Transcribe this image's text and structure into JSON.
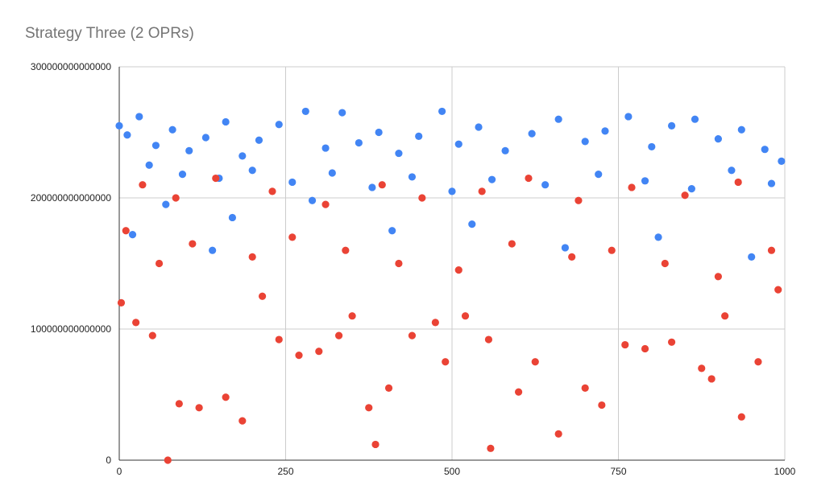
{
  "chart_data": {
    "type": "scatter",
    "title": "Strategy Three (2 OPRs)",
    "xlabel": "",
    "ylabel": "",
    "xlim": [
      0,
      1000
    ],
    "ylim": [
      0,
      300000000000000
    ],
    "x_ticks": [
      0,
      250,
      500,
      750,
      1000
    ],
    "x_tick_labels": [
      "0",
      "250",
      "500",
      "750",
      "1000"
    ],
    "y_ticks": [
      0,
      100000000000000,
      200000000000000,
      300000000000000
    ],
    "y_tick_labels": [
      "0",
      "100000000000000",
      "200000000000000",
      "300000000000000"
    ],
    "grid": true,
    "legend": "none",
    "series": [
      {
        "color": "#4285f4",
        "x": [
          0,
          12,
          30,
          55,
          80,
          105,
          130,
          160,
          185,
          210,
          240,
          280,
          310,
          335,
          360,
          390,
          420,
          450,
          485,
          510,
          540,
          580,
          620,
          660,
          700,
          730,
          765,
          800,
          830,
          865,
          900,
          935,
          970,
          995,
          45,
          95,
          150,
          200,
          260,
          320,
          380,
          440,
          500,
          560,
          640,
          720,
          790,
          860,
          920,
          980,
          70,
          170,
          290,
          410,
          530,
          670,
          810,
          950,
          20,
          140
        ],
        "y": [
          255000000000000,
          248000000000000,
          262000000000000,
          240000000000000,
          252000000000000,
          236000000000000,
          246000000000000,
          258000000000000,
          232000000000000,
          244000000000000,
          256000000000000,
          266000000000000,
          238000000000000,
          265000000000000,
          242000000000000,
          250000000000000,
          234000000000000,
          247000000000000,
          266000000000000,
          241000000000000,
          254000000000000,
          236000000000000,
          249000000000000,
          260000000000000,
          243000000000000,
          251000000000000,
          262000000000000,
          239000000000000,
          255000000000000,
          260000000000000,
          245000000000000,
          252000000000000,
          237000000000000,
          228000000000000,
          225000000000000,
          218000000000000,
          215000000000000,
          221000000000000,
          212000000000000,
          219000000000000,
          208000000000000,
          216000000000000,
          205000000000000,
          214000000000000,
          210000000000000,
          218000000000000,
          213000000000000,
          207000000000000,
          221000000000000,
          211000000000000,
          195000000000000,
          185000000000000,
          198000000000000,
          175000000000000,
          180000000000000,
          162000000000000,
          170000000000000,
          155000000000000,
          172000000000000,
          160000000000000
        ]
      },
      {
        "color": "#ea4335",
        "x": [
          3,
          25,
          50,
          73,
          90,
          120,
          160,
          185,
          215,
          240,
          270,
          300,
          330,
          350,
          375,
          385,
          405,
          440,
          475,
          490,
          520,
          555,
          558,
          600,
          625,
          660,
          700,
          725,
          760,
          790,
          830,
          875,
          890,
          910,
          935,
          960,
          990,
          10,
          60,
          110,
          200,
          260,
          340,
          420,
          510,
          590,
          680,
          740,
          820,
          900,
          980,
          35,
          85,
          145,
          230,
          310,
          395,
          455,
          545,
          615,
          690,
          770,
          850,
          930
        ],
        "y": [
          120000000000000,
          105000000000000,
          95000000000000,
          0,
          43000000000000,
          40000000000000,
          48000000000000,
          30000000000000,
          125000000000000,
          92000000000000,
          80000000000000,
          83000000000000,
          95000000000000,
          110000000000000,
          40000000000000,
          12000000000000,
          55000000000000,
          95000000000000,
          105000000000000,
          75000000000000,
          110000000000000,
          92000000000000,
          9000000000000,
          52000000000000,
          75000000000000,
          20000000000000,
          55000000000000,
          42000000000000,
          88000000000000,
          85000000000000,
          90000000000000,
          70000000000000,
          62000000000000,
          110000000000000,
          33000000000000,
          75000000000000,
          130000000000000,
          175000000000000,
          150000000000000,
          165000000000000,
          155000000000000,
          170000000000000,
          160000000000000,
          150000000000000,
          145000000000000,
          165000000000000,
          155000000000000,
          160000000000000,
          150000000000000,
          140000000000000,
          160000000000000,
          210000000000000,
          200000000000000,
          215000000000000,
          205000000000000,
          195000000000000,
          210000000000000,
          200000000000000,
          205000000000000,
          215000000000000,
          198000000000000,
          208000000000000,
          202000000000000,
          212000000000000
        ]
      }
    ]
  }
}
